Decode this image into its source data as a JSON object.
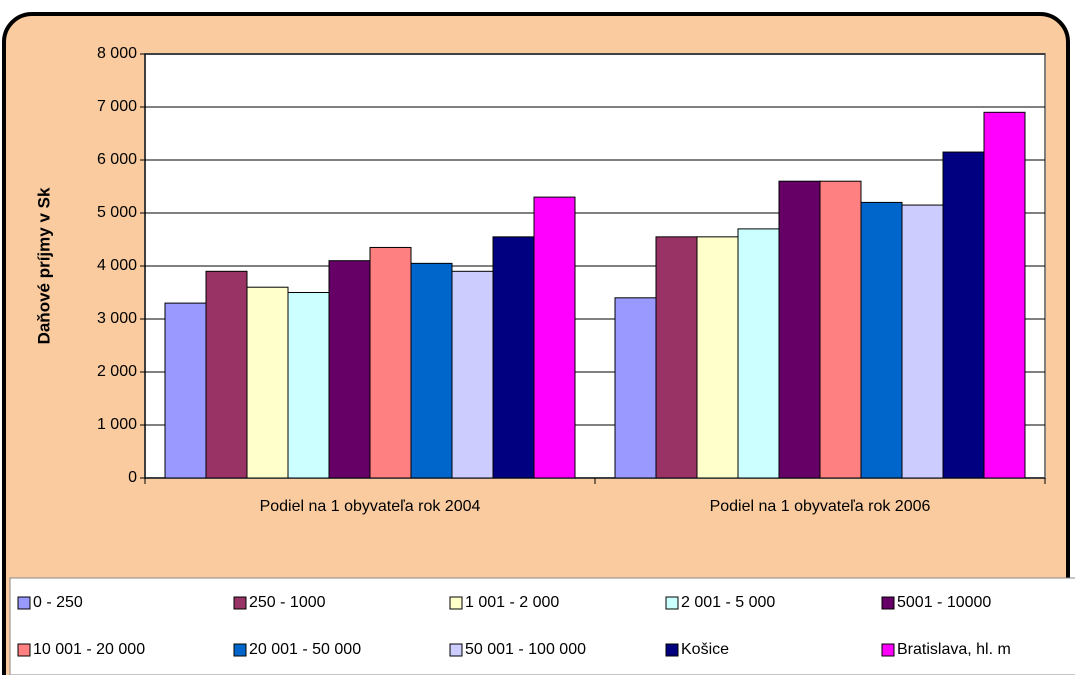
{
  "chart_data": {
    "type": "bar",
    "y_label": "Daňové príjmy v Sk",
    "categories": [
      "Podiel na 1 obyvateľa rok 2004",
      "Podiel na 1 obyvateľa rok 2006"
    ],
    "series": [
      {
        "name": "0 - 250",
        "color": "#9999ff",
        "values": [
          3300,
          3400
        ]
      },
      {
        "name": "250 - 1000",
        "color": "#993366",
        "values": [
          3900,
          4550
        ]
      },
      {
        "name": "1 001 - 2 000",
        "color": "#ffffcc",
        "values": [
          3600,
          4550
        ]
      },
      {
        "name": "2 001 - 5 000",
        "color": "#ccffff",
        "values": [
          3500,
          4700
        ]
      },
      {
        "name": "5001 - 10000",
        "color": "#660066",
        "values": [
          4100,
          5600
        ]
      },
      {
        "name": "10 001 - 20 000",
        "color": "#ff8080",
        "values": [
          4350,
          5600
        ]
      },
      {
        "name": "20 001 - 50 000",
        "color": "#0066cc",
        "values": [
          4050,
          5200
        ]
      },
      {
        "name": "50 001 - 100 000",
        "color": "#ccccff",
        "values": [
          3900,
          5150
        ]
      },
      {
        "name": "Košice",
        "color": "#000080",
        "values": [
          4550,
          6150
        ]
      },
      {
        "name": "Bratislava, hl. m",
        "color": "#ff00ff",
        "values": [
          5300,
          6900
        ]
      }
    ],
    "ylim": [
      0,
      8000
    ],
    "yticks": [
      0,
      {
        "value": 1000,
        "label": "1 000"
      },
      {
        "value": 2000,
        "label": "2 000"
      },
      {
        "value": 3000,
        "label": "3 000"
      },
      {
        "value": 4000,
        "label": "4 000"
      },
      {
        "value": 5000,
        "label": "5 000"
      },
      {
        "value": 6000,
        "label": "6 000"
      },
      {
        "value": 7000,
        "label": "7 000"
      },
      {
        "value": 8000,
        "label": "8 000"
      }
    ],
    "grid": true
  }
}
